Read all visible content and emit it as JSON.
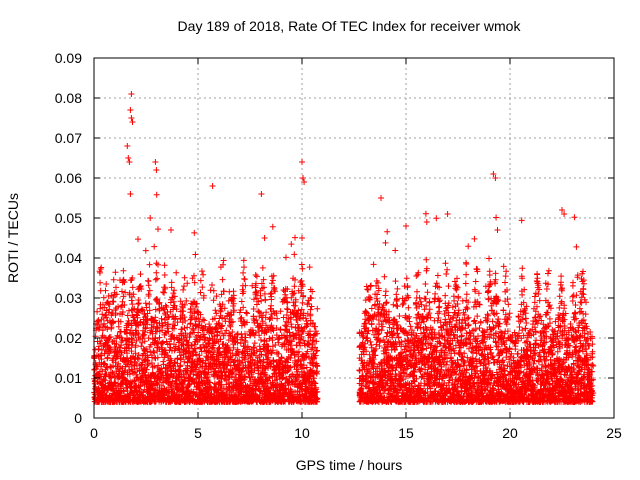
{
  "chart_data": {
    "type": "scatter",
    "title": "Day 189 of 2018, Rate Of TEC Index for receiver wmok",
    "xlabel": "GPS time / hours",
    "ylabel": "ROTI / TECUs",
    "xlim": [
      0,
      25
    ],
    "ylim": [
      0,
      0.09
    ],
    "xticks": [
      0,
      5,
      10,
      15,
      20,
      25
    ],
    "xtick_labels": [
      "0",
      "5",
      "10",
      "15",
      "20",
      "25"
    ],
    "yticks": [
      0,
      0.01,
      0.02,
      0.03,
      0.04,
      0.05,
      0.06,
      0.07,
      0.08,
      0.09
    ],
    "ytick_labels": [
      "0",
      "0.01",
      "0.02",
      "0.03",
      "0.04",
      "0.05",
      "0.06",
      "0.07",
      "0.08",
      "0.09"
    ],
    "grid": true,
    "marker": "+",
    "color": "#ff0000",
    "coverage_segments": [
      [
        0.0,
        10.75
      ],
      [
        12.75,
        24.0
      ]
    ],
    "series": [
      {
        "name": "ROTI",
        "notable_points": [
          {
            "x": 1.8,
            "y": 0.081
          },
          {
            "x": 1.75,
            "y": 0.077
          },
          {
            "x": 1.8,
            "y": 0.075
          },
          {
            "x": 1.85,
            "y": 0.074
          },
          {
            "x": 1.6,
            "y": 0.068
          },
          {
            "x": 1.65,
            "y": 0.065
          },
          {
            "x": 1.7,
            "y": 0.064
          },
          {
            "x": 2.95,
            "y": 0.064
          },
          {
            "x": 3.0,
            "y": 0.062
          },
          {
            "x": 10.0,
            "y": 0.064
          },
          {
            "x": 10.05,
            "y": 0.06
          },
          {
            "x": 10.1,
            "y": 0.059
          },
          {
            "x": 19.2,
            "y": 0.061
          },
          {
            "x": 19.3,
            "y": 0.06
          },
          {
            "x": 5.7,
            "y": 0.058
          },
          {
            "x": 8.05,
            "y": 0.056
          },
          {
            "x": 1.75,
            "y": 0.056
          },
          {
            "x": 22.5,
            "y": 0.052
          },
          {
            "x": 22.6,
            "y": 0.051
          },
          {
            "x": 13.8,
            "y": 0.055
          },
          {
            "x": 17.0,
            "y": 0.051
          },
          {
            "x": 2.7,
            "y": 0.05
          },
          {
            "x": 3.7,
            "y": 0.047
          },
          {
            "x": 19.4,
            "y": 0.047
          },
          {
            "x": 16.0,
            "y": 0.049
          },
          {
            "x": 15.0,
            "y": 0.048
          },
          {
            "x": 10.0,
            "y": 0.045
          },
          {
            "x": 8.2,
            "y": 0.045
          }
        ]
      }
    ]
  }
}
